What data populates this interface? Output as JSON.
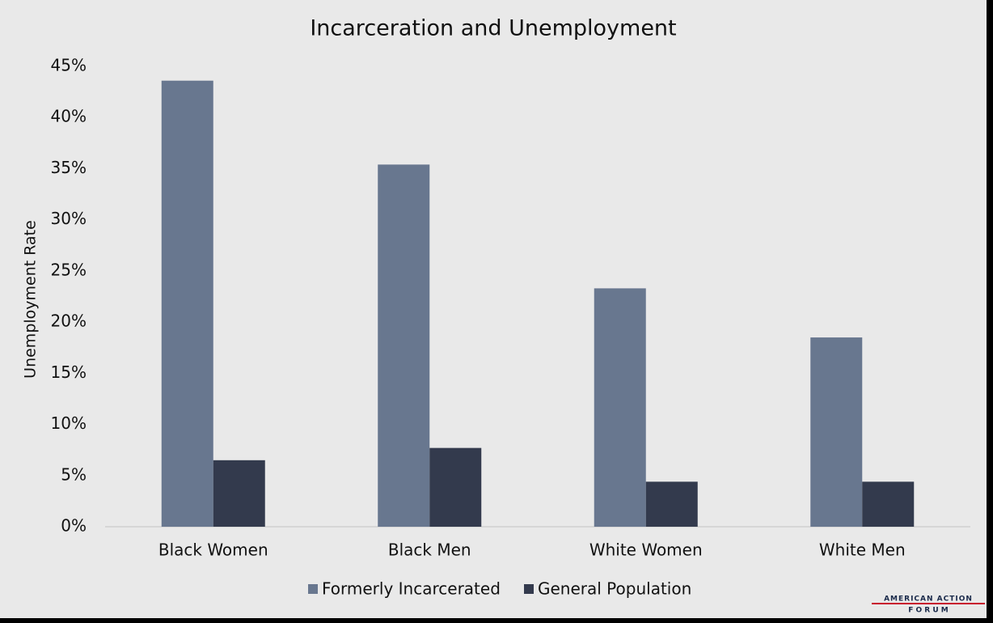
{
  "chart_data": {
    "type": "bar",
    "title": "Incarceration and Unemployment",
    "y_label": "Unemployment Rate",
    "categories": [
      "Black Women",
      "Black Men",
      "White Women",
      "White Men"
    ],
    "series": [
      {
        "name": "Formerly Incarcerated",
        "color": "#68778f",
        "values": [
          43.6,
          35.4,
          23.3,
          18.5
        ]
      },
      {
        "name": "General Population",
        "color": "#333a4d",
        "values": [
          6.5,
          7.7,
          4.4,
          4.4
        ]
      }
    ],
    "ylim": [
      0,
      45
    ],
    "yticks": [
      {
        "value": 0,
        "label": "0%"
      },
      {
        "value": 5,
        "label": "5%"
      },
      {
        "value": 10,
        "label": "10%"
      },
      {
        "value": 15,
        "label": "15%"
      },
      {
        "value": 20,
        "label": "20%"
      },
      {
        "value": 25,
        "label": "25%"
      },
      {
        "value": 30,
        "label": "30%"
      },
      {
        "value": 35,
        "label": "35%"
      },
      {
        "value": 40,
        "label": "40%"
      },
      {
        "value": 45,
        "label": "45%"
      }
    ],
    "grid": false,
    "legend": "bottom"
  },
  "logo": {
    "line1": "AMERICAN ACTION",
    "line2": "F O R U M"
  }
}
